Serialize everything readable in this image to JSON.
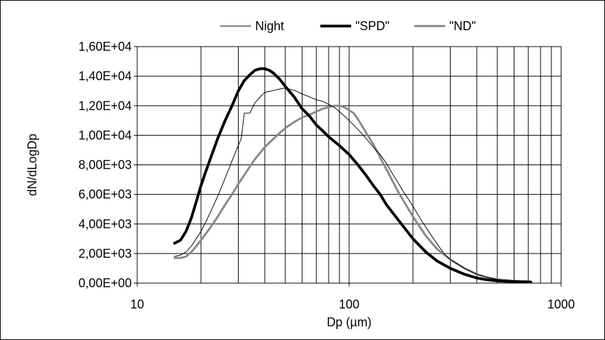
{
  "chart_data": {
    "type": "line",
    "x_scale": "log",
    "xlim": [
      10,
      1000
    ],
    "ylim": [
      0,
      16000
    ],
    "xlabel": "Dp (µm)",
    "ylabel": "dN/dLogDp",
    "grid": true,
    "legend_position": "top",
    "x_ticks": [
      "10",
      "100",
      "1000"
    ],
    "y_ticks": [
      "0,00E+00",
      "2,00E+03",
      "4,00E+03",
      "6,00E+03",
      "8,00E+03",
      "1,00E+04",
      "1,20E+04",
      "1,40E+04",
      "1,60E+04"
    ],
    "series": [
      {
        "name": "Night",
        "color": "#000000",
        "style": "thin",
        "x": [
          15,
          16,
          17,
          18,
          19,
          20,
          21,
          22,
          23,
          24,
          25,
          27,
          29,
          31,
          32,
          34,
          36,
          38,
          40,
          43,
          46,
          50,
          53,
          56,
          60,
          65,
          70,
          75,
          80,
          85,
          90,
          95,
          100,
          110,
          120,
          130,
          140,
          150,
          160,
          170,
          180,
          200,
          220,
          250,
          280,
          300,
          350,
          400,
          450,
          500,
          550,
          600,
          650,
          700,
          720
        ],
        "values": [
          1800,
          1900,
          2100,
          2500,
          3000,
          3500,
          4100,
          4700,
          5300,
          5900,
          6500,
          7700,
          8800,
          9800,
          11500,
          11500,
          12200,
          12600,
          12900,
          13000,
          13100,
          13200,
          13100,
          13000,
          12800,
          12600,
          12400,
          12300,
          12100,
          11900,
          11600,
          11300,
          11000,
          10400,
          9800,
          9200,
          8700,
          8100,
          7400,
          6800,
          6200,
          5200,
          4200,
          3000,
          2000,
          1600,
          1000,
          600,
          380,
          250,
          180,
          130,
          100,
          80,
          70
        ]
      },
      {
        "name": "\"SPD\"",
        "color": "#000000",
        "style": "thick",
        "x": [
          15,
          16,
          17,
          18,
          19,
          20,
          21,
          22,
          24,
          26,
          28,
          30,
          32,
          34,
          36,
          38,
          40,
          42,
          44,
          47,
          50,
          55,
          60,
          65,
          70,
          75,
          80,
          90,
          100,
          110,
          120,
          130,
          140,
          150,
          170,
          200,
          230,
          260,
          300,
          350,
          400,
          450,
          500,
          600,
          700,
          720
        ],
        "values": [
          2700,
          2900,
          3500,
          4400,
          5500,
          6600,
          7500,
          8300,
          9800,
          11000,
          12000,
          13000,
          13700,
          14100,
          14400,
          14500,
          14500,
          14400,
          14200,
          13800,
          13300,
          12600,
          11800,
          11300,
          10700,
          10300,
          9900,
          9300,
          8700,
          8000,
          7300,
          6600,
          6000,
          5300,
          4300,
          3000,
          2100,
          1500,
          1000,
          600,
          350,
          220,
          150,
          100,
          80,
          70
        ]
      },
      {
        "name": "\"ND\"",
        "color": "#888888",
        "style": "medium",
        "x": [
          15,
          16,
          17,
          18,
          19,
          20,
          22,
          24,
          26,
          28,
          30,
          33,
          36,
          40,
          45,
          50,
          55,
          60,
          65,
          70,
          75,
          80,
          85,
          90,
          95,
          100,
          105,
          110,
          120,
          130,
          140,
          150,
          170,
          200,
          230,
          260,
          300,
          350,
          400,
          450,
          500,
          600,
          700,
          720
        ],
        "values": [
          1700,
          1700,
          1800,
          2100,
          2500,
          2900,
          3700,
          4500,
          5300,
          6000,
          6700,
          7600,
          8400,
          9200,
          9900,
          10500,
          10900,
          11200,
          11400,
          11600,
          11800,
          11900,
          12000,
          12000,
          11900,
          11700,
          11500,
          11100,
          10200,
          9400,
          8500,
          7700,
          6200,
          4500,
          3200,
          2300,
          1600,
          1000,
          600,
          380,
          250,
          150,
          100,
          80
        ]
      }
    ]
  }
}
